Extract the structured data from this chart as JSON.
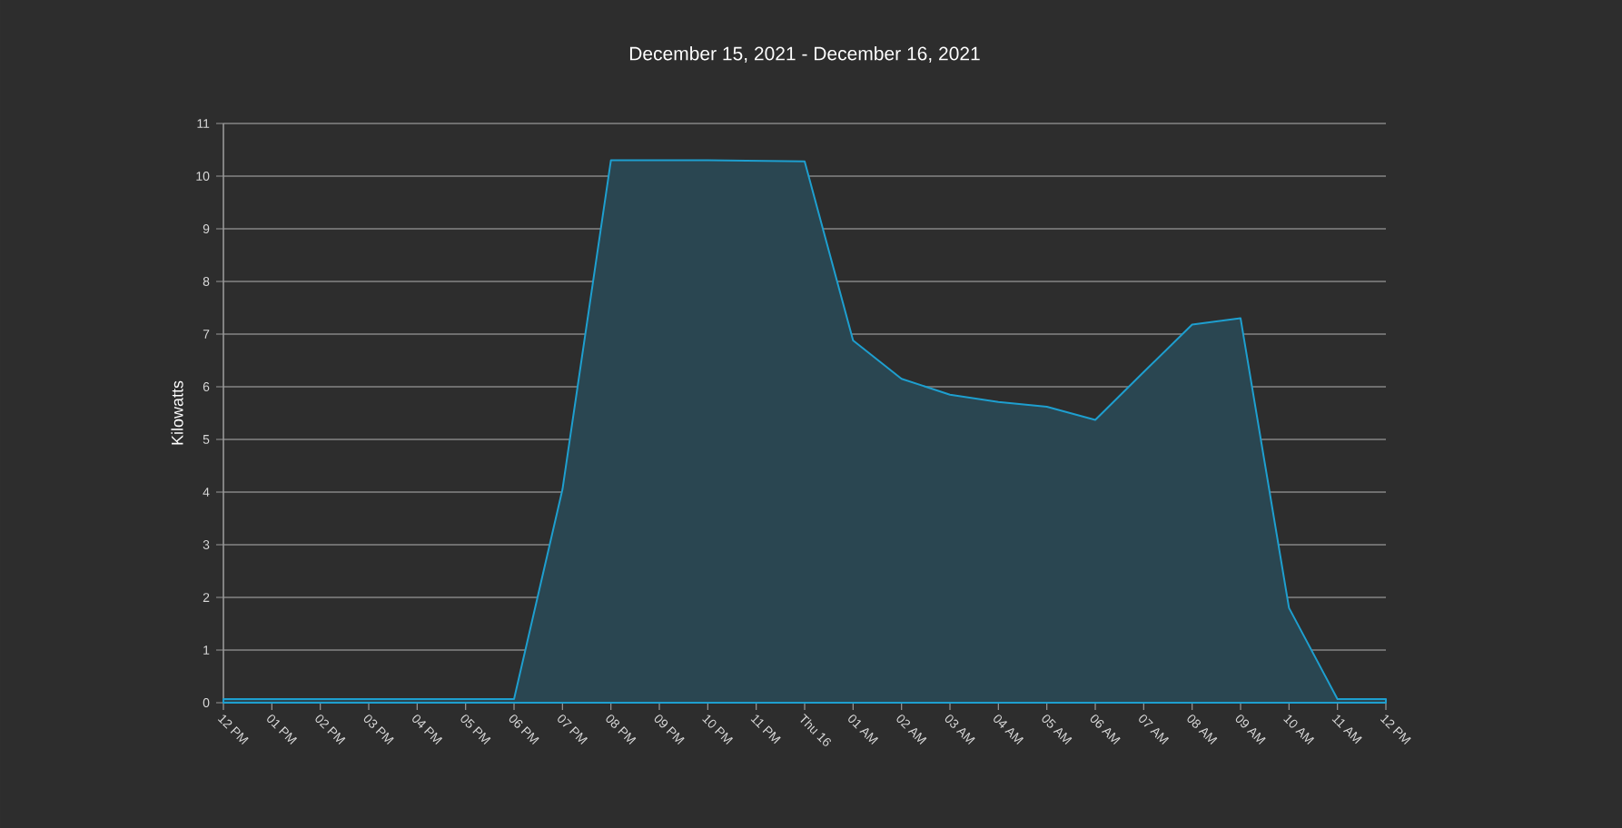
{
  "chart_data": {
    "type": "area",
    "title": "December 15, 2021 - December 16, 2021",
    "ylabel": "Kilowatts",
    "categories": [
      "12 PM",
      "01 PM",
      "02 PM",
      "03 PM",
      "04 PM",
      "05 PM",
      "06 PM",
      "07 PM",
      "08 PM",
      "09 PM",
      "10 PM",
      "11 PM",
      "Thu 16",
      "01 AM",
      "02 AM",
      "03 AM",
      "04 AM",
      "05 AM",
      "06 AM",
      "07 AM",
      "08 AM",
      "09 AM",
      "10 AM",
      "11 AM",
      "12 PM"
    ],
    "values": [
      0.07,
      0.07,
      0.07,
      0.07,
      0.07,
      0.07,
      0.07,
      4.05,
      10.3,
      10.3,
      10.3,
      10.29,
      10.28,
      6.88,
      6.15,
      5.85,
      5.71,
      5.62,
      5.37,
      6.28,
      7.18,
      7.3,
      1.8,
      0.07,
      0.07
    ],
    "color": "#1e9fcf",
    "ylim": [
      0,
      11
    ],
    "yticks": [
      0,
      1,
      2,
      3,
      4,
      5,
      6,
      7,
      8,
      9,
      10,
      11
    ],
    "grid": "y"
  }
}
